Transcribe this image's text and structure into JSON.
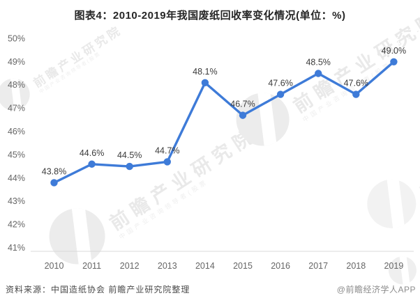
{
  "title": "图表4：2010-2019年我国废纸回收率变化情况(单位：%)",
  "footer": {
    "source": "资料来源：中国造纸协会 前瞻产业研究院整理",
    "credit": "@前瞻经济学人APP"
  },
  "watermark": {
    "brand": "前瞻产业研究院",
    "sub": "中国产业咨询领导者(股票",
    "stock_code": "8 3 9 -"
  },
  "chart_data": {
    "type": "line",
    "title": "图表4：2010-2019年我国废纸回收率变化情况(单位：%)",
    "categories": [
      "2010",
      "2011",
      "2012",
      "2013",
      "2014",
      "2015",
      "2016",
      "2017",
      "2018",
      "2019"
    ],
    "values": [
      43.8,
      44.6,
      44.5,
      44.7,
      48.1,
      46.7,
      47.6,
      48.5,
      47.6,
      49.0
    ],
    "point_labels": [
      "43.8%",
      "44.6%",
      "44.5%",
      "44.7%",
      "48.1%",
      "46.7%",
      "47.6%",
      "48.5%",
      "47.6%",
      "49.0%"
    ],
    "ytick_labels": [
      "41%",
      "42%",
      "43%",
      "44%",
      "45%",
      "46%",
      "47%",
      "48%",
      "49%",
      "50%"
    ],
    "ylim": [
      41,
      50
    ],
    "xlabel": "",
    "ylabel": "",
    "grid": false,
    "legend": false,
    "line_color": "#3E7BD8",
    "axis_line_color": "#d9d9d9",
    "tick_color": "#666666",
    "label_color": "#3b3b3b"
  }
}
